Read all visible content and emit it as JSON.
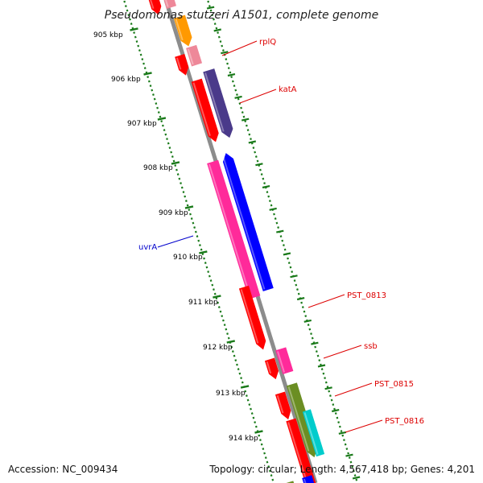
{
  "title": "Pseudomonas stutzeri A1501, complete genome",
  "accession": "Accession: NC_009434",
  "summary": "Topology: circular; Length: 4,567,418 bp; Genes: 4,201",
  "ticks": [
    "905 kbp",
    "906 kbp",
    "907 kbp",
    "908 kbp",
    "909 kbp",
    "910 kbp",
    "911 kbp",
    "912 kbp",
    "913 kbp",
    "914 kbp"
  ],
  "colors": {
    "backbone": "#8c8c8c",
    "tick": "#1a7a1a",
    "label_red": "#dd0000",
    "label_blue": "#0000cc",
    "cds_red": "#ff0000",
    "cds_orange": "#ff9900",
    "cds_pink": "#ee8899",
    "cds_purple": "#4a3a8a",
    "cds_magenta": "#ff2a9a",
    "cds_blue": "#0000ff",
    "cds_olive": "#6b8e23",
    "cds_cyan": "#00cccc"
  },
  "gene_labels": [
    "rplQ",
    "katA",
    "uvrA",
    "PST_0813",
    "ssb",
    "PST_0815",
    "PST_0816"
  ]
}
